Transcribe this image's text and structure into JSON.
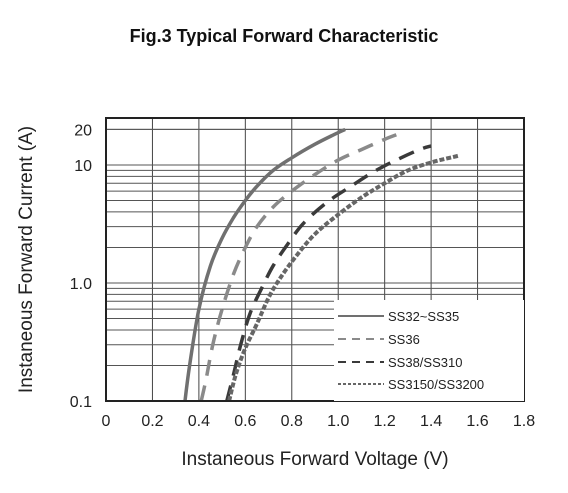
{
  "chart_data": {
    "type": "line",
    "title": "Fig.3  Typical Forward Characteristic",
    "xlabel": "Instaneous Forward Voltage (V)",
    "ylabel": "Instaneous Forward Current  (A)",
    "xlim": [
      0,
      1.8
    ],
    "ylim": [
      0.1,
      25
    ],
    "yscale": "log",
    "grid": true,
    "legend_position": "bottom-right",
    "x_ticks": [
      "0",
      "0.2",
      "0.4",
      "0.6",
      "0.8",
      "1.0",
      "1.2",
      "1.4",
      "1.6",
      "1.8"
    ],
    "y_ticks": [
      {
        "value": 0.1,
        "label": "0.1"
      },
      {
        "value": 1,
        "label": "1.0"
      },
      {
        "value": 10,
        "label": "10"
      },
      {
        "value": 20,
        "label": "20"
      }
    ],
    "series": [
      {
        "name": "SS32~SS35",
        "color": "#707070",
        "dash": "solid",
        "x": [
          0.34,
          0.36,
          0.4,
          0.45,
          0.5,
          0.55,
          0.6,
          0.65,
          0.72,
          0.8,
          0.9,
          0.98,
          1.03
        ],
        "y": [
          0.1,
          0.2,
          0.6,
          1.4,
          2.4,
          3.6,
          5.0,
          6.6,
          9.0,
          11.5,
          15.0,
          18.0,
          20.0
        ]
      },
      {
        "name": "SS36",
        "color": "#8a8a8a",
        "dash": "dashed",
        "x": [
          0.41,
          0.43,
          0.46,
          0.5,
          0.55,
          0.6,
          0.65,
          0.72,
          0.8,
          0.9,
          1.0,
          1.1,
          1.2,
          1.25
        ],
        "y": [
          0.1,
          0.15,
          0.3,
          0.6,
          1.2,
          2.0,
          3.0,
          4.4,
          6.0,
          8.3,
          11.0,
          13.5,
          16.5,
          18.0
        ]
      },
      {
        "name": "SS38/SS310",
        "color": "#3a3a3a",
        "dash": "dashed",
        "x": [
          0.52,
          0.55,
          0.58,
          0.62,
          0.67,
          0.72,
          0.78,
          0.85,
          0.95,
          1.05,
          1.15,
          1.25,
          1.35,
          1.4
        ],
        "y": [
          0.1,
          0.17,
          0.3,
          0.55,
          0.9,
          1.4,
          2.1,
          3.2,
          4.8,
          6.5,
          8.7,
          11.0,
          13.5,
          14.5
        ]
      },
      {
        "name": "SS3150/SS3200",
        "color": "#666666",
        "dash": "dotted",
        "x": [
          0.53,
          0.56,
          0.6,
          0.65,
          0.7,
          0.75,
          0.82,
          0.9,
          1.0,
          1.1,
          1.2,
          1.3,
          1.4,
          1.48,
          1.52
        ],
        "y": [
          0.1,
          0.17,
          0.28,
          0.45,
          0.75,
          1.1,
          1.7,
          2.6,
          3.8,
          5.3,
          7.0,
          9.0,
          10.5,
          11.5,
          12.0
        ]
      }
    ]
  }
}
